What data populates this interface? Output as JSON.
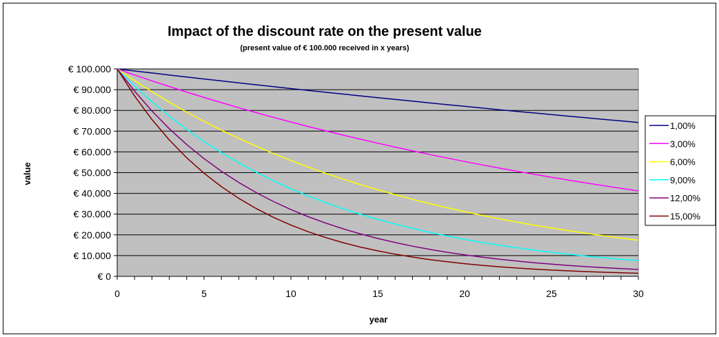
{
  "chart_data": {
    "type": "line",
    "title": "Impact of the discount rate on the present value",
    "subtitle": "(present value of € 100.000 received in x years)",
    "xlabel": "year",
    "ylabel": "value",
    "x": [
      0,
      1,
      2,
      3,
      4,
      5,
      6,
      7,
      8,
      9,
      10,
      11,
      12,
      13,
      14,
      15,
      16,
      17,
      18,
      19,
      20,
      21,
      22,
      23,
      24,
      25,
      26,
      27,
      28,
      29,
      30
    ],
    "xlim": [
      0,
      30
    ],
    "ylim": [
      0,
      100000
    ],
    "x_ticks": [
      0,
      5,
      10,
      15,
      20,
      25,
      30
    ],
    "x_tick_labels": [
      "0",
      "5",
      "10",
      "15",
      "20",
      "25",
      "30"
    ],
    "y_ticks": [
      0,
      10000,
      20000,
      30000,
      40000,
      50000,
      60000,
      70000,
      80000,
      90000,
      100000
    ],
    "y_tick_labels": [
      "€ 0",
      "€ 10.000",
      "€ 20.000",
      "€ 30.000",
      "€ 40.000",
      "€ 50.000",
      "€ 60.000",
      "€ 70.000",
      "€ 80.000",
      "€ 90.000",
      "€ 100.000"
    ],
    "grid": "horizontal",
    "plot_background": "#C0C0C0",
    "legend_position": "right",
    "series": [
      {
        "name": "1,00%",
        "color": "#000080",
        "values": [
          100000,
          99010,
          98030,
          97059,
          96098,
          95147,
          94205,
          93272,
          92348,
          91434,
          90529,
          89632,
          88745,
          87866,
          86996,
          86135,
          85282,
          84438,
          83602,
          82774,
          81954,
          81143,
          80340,
          79544,
          78757,
          77977,
          77205,
          76440,
          75684,
          74934,
          74192
        ]
      },
      {
        "name": "3,00%",
        "color": "#FF00FF",
        "values": [
          100000,
          97087,
          94260,
          91514,
          88849,
          86261,
          83748,
          81309,
          78941,
          76642,
          74409,
          72242,
          70138,
          68095,
          66112,
          64186,
          62317,
          60502,
          58739,
          57029,
          55368,
          53755,
          52189,
          50669,
          49193,
          47761,
          46369,
          45019,
          43708,
          42435,
          41199
        ]
      },
      {
        "name": "6,00%",
        "color": "#FFFF00",
        "values": [
          100000,
          94340,
          89000,
          83962,
          79209,
          74726,
          70496,
          66506,
          62741,
          59190,
          55839,
          52679,
          49697,
          46884,
          44230,
          41727,
          39365,
          37136,
          35034,
          33051,
          31180,
          29416,
          27751,
          26180,
          24698,
          23300,
          21981,
          20737,
          19563,
          18456,
          17411
        ]
      },
      {
        "name": "9,00%",
        "color": "#00FFFF",
        "values": [
          100000,
          91743,
          84168,
          77218,
          70843,
          64993,
          59627,
          54703,
          50187,
          46043,
          42241,
          38753,
          35553,
          32618,
          29925,
          27454,
          25187,
          23107,
          21199,
          19449,
          17843,
          16370,
          15018,
          13778,
          12640,
          11597,
          10639,
          9761,
          8955,
          8215,
          7537
        ]
      },
      {
        "name": "12,00%",
        "color": "#800080",
        "values": [
          100000,
          89286,
          79719,
          71178,
          63552,
          56743,
          50663,
          45235,
          40388,
          36061,
          32197,
          28748,
          25668,
          22917,
          20462,
          18270,
          16312,
          14564,
          13004,
          11611,
          10367,
          9256,
          8264,
          7379,
          6588,
          5882,
          5252,
          4689,
          4187,
          3738,
          3338
        ]
      },
      {
        "name": "15,00%",
        "color": "#800000",
        "values": [
          100000,
          86957,
          75614,
          65752,
          57175,
          49718,
          43233,
          37594,
          32690,
          28426,
          24718,
          21494,
          18691,
          16253,
          14133,
          12289,
          10686,
          9293,
          8081,
          7027,
          6110,
          5313,
          4620,
          4017,
          3493,
          3038,
          2642,
          2297,
          1997,
          1737,
          1510
        ]
      }
    ]
  }
}
